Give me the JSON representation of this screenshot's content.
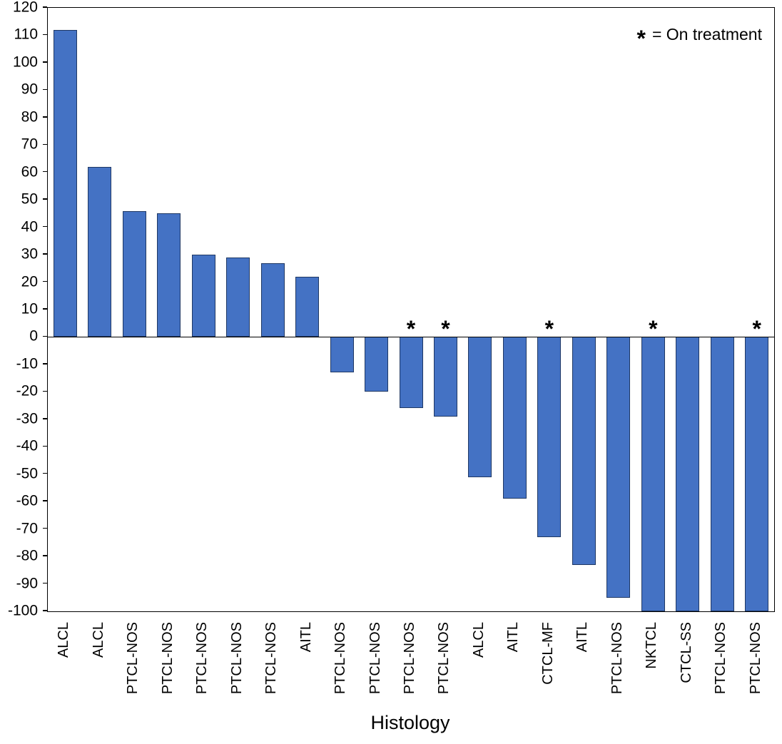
{
  "chart_data": {
    "type": "bar",
    "subtype": "waterfall",
    "title": "",
    "xlabel": "Histology",
    "ylabel": "",
    "ylim": [
      -100,
      120
    ],
    "ytick_step": 10,
    "grid": false,
    "legend_position": "top-right",
    "legend_symbol": "*",
    "legend_text": "= On treatment",
    "bar_color": "#4472C4",
    "bar_border_color": "#1F3864",
    "axis_color": "#000000",
    "bars": [
      {
        "label": "ALCL",
        "value": 112,
        "on_treatment": false
      },
      {
        "label": "ALCL",
        "value": 62,
        "on_treatment": false
      },
      {
        "label": "PTCL-NOS",
        "value": 46,
        "on_treatment": false
      },
      {
        "label": "PTCL-NOS",
        "value": 45,
        "on_treatment": false
      },
      {
        "label": "PTCL-NOS",
        "value": 30,
        "on_treatment": false
      },
      {
        "label": "PTCL-NOS",
        "value": 29,
        "on_treatment": false
      },
      {
        "label": "PTCL-NOS",
        "value": 27,
        "on_treatment": false
      },
      {
        "label": "AITL",
        "value": 22,
        "on_treatment": false
      },
      {
        "label": "PTCL-NOS",
        "value": -13,
        "on_treatment": false
      },
      {
        "label": "PTCL-NOS",
        "value": -20,
        "on_treatment": false
      },
      {
        "label": "PTCL-NOS",
        "value": -26,
        "on_treatment": true
      },
      {
        "label": "PTCL-NOS",
        "value": -29,
        "on_treatment": true
      },
      {
        "label": "ALCL",
        "value": -51,
        "on_treatment": false
      },
      {
        "label": "AITL",
        "value": -59,
        "on_treatment": false
      },
      {
        "label": "CTCL-MF",
        "value": -73,
        "on_treatment": true
      },
      {
        "label": "AITL",
        "value": -83,
        "on_treatment": false
      },
      {
        "label": "PTCL-NOS",
        "value": -95,
        "on_treatment": false
      },
      {
        "label": "NKTCL",
        "value": -100,
        "on_treatment": true
      },
      {
        "label": "CTCL-SS",
        "value": -100,
        "on_treatment": false
      },
      {
        "label": "PTCL-NOS",
        "value": -100,
        "on_treatment": false
      },
      {
        "label": "PTCL-NOS",
        "value": -100,
        "on_treatment": true
      }
    ]
  }
}
